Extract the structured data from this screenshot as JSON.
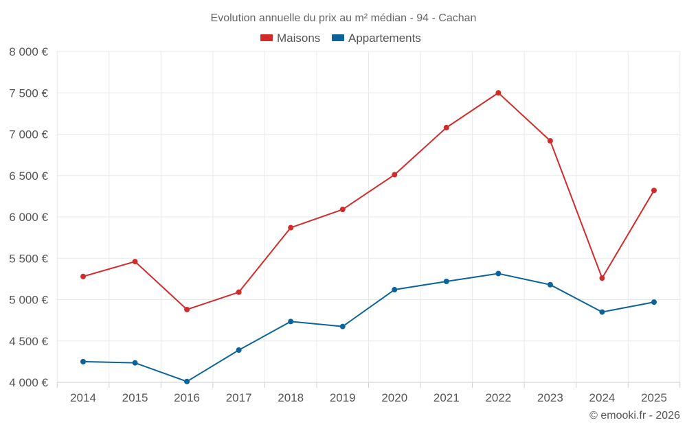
{
  "chart_data": {
    "type": "line",
    "title": "Evolution annuelle du prix au m² médian - 94 - Cachan",
    "categories": [
      "2014",
      "2015",
      "2016",
      "2017",
      "2018",
      "2019",
      "2020",
      "2021",
      "2022",
      "2023",
      "2024",
      "2025"
    ],
    "series": [
      {
        "name": "Maisons",
        "color": "#d32a2a",
        "values": [
          5280,
          5460,
          4880,
          5090,
          5870,
          6090,
          6510,
          7080,
          7500,
          6920,
          5260,
          6320
        ]
      },
      {
        "name": "Appartements",
        "color": "#0a6399",
        "values": [
          4250,
          4235,
          4010,
          4390,
          4735,
          4675,
          5120,
          5220,
          5315,
          5180,
          4850,
          4970
        ]
      }
    ],
    "ylim": [
      4000,
      8000
    ],
    "yticks": [
      4000,
      4500,
      5000,
      5500,
      6000,
      6500,
      7000,
      7500,
      8000
    ],
    "ytick_labels": [
      "4 000 €",
      "4 500 €",
      "5 000 €",
      "5 500 €",
      "6 000 €",
      "6 500 €",
      "7 000 €",
      "7 500 €",
      "8 000 €"
    ],
    "legend_position": "top-center",
    "grid": true,
    "xlabel": "",
    "ylabel": ""
  },
  "credit": "© emooki.fr - 2026"
}
